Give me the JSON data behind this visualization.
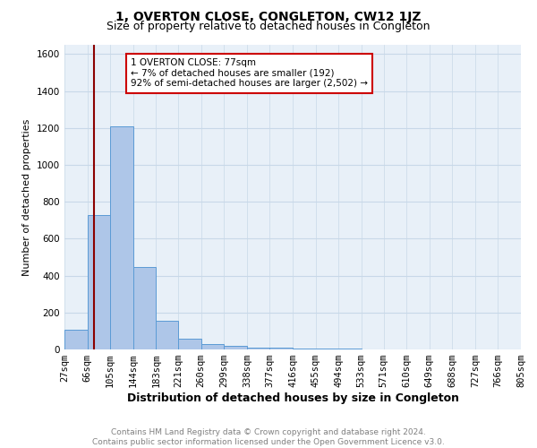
{
  "title": "1, OVERTON CLOSE, CONGLETON, CW12 1JZ",
  "subtitle": "Size of property relative to detached houses in Congleton",
  "xlabel": "Distribution of detached houses by size in Congleton",
  "ylabel": "Number of detached properties",
  "footer_line1": "Contains HM Land Registry data © Crown copyright and database right 2024.",
  "footer_line2": "Contains public sector information licensed under the Open Government Licence v3.0.",
  "annotation_line1": "1 OVERTON CLOSE: 77sqm",
  "annotation_line2": "← 7% of detached houses are smaller (192)",
  "annotation_line3": "92% of semi-detached houses are larger (2,502) →",
  "property_size": 77,
  "bin_edges": [
    27,
    66,
    105,
    144,
    183,
    221,
    260,
    299,
    338,
    377,
    416,
    455,
    494,
    533,
    571,
    610,
    649,
    688,
    727,
    766,
    805
  ],
  "bin_counts": [
    105,
    726,
    1207,
    447,
    155,
    60,
    28,
    17,
    12,
    8,
    5,
    4,
    3,
    2,
    1,
    1,
    1,
    0,
    0,
    1
  ],
  "bar_color": "#aec6e8",
  "bar_edge_color": "#5b9bd5",
  "vline_color": "#8b0000",
  "vline_x": 77,
  "annotation_box_edge": "#cc0000",
  "annotation_box_fill": "white",
  "grid_color": "#c8d8e8",
  "background_color": "#e8f0f8",
  "ylim": [
    0,
    1650
  ],
  "yticks": [
    0,
    200,
    400,
    600,
    800,
    1000,
    1200,
    1400,
    1600
  ],
  "title_fontsize": 10,
  "subtitle_fontsize": 9,
  "ylabel_fontsize": 8,
  "xlabel_fontsize": 9,
  "tick_fontsize": 7.5,
  "footer_fontsize": 6.5,
  "annotation_fontsize": 7.5
}
